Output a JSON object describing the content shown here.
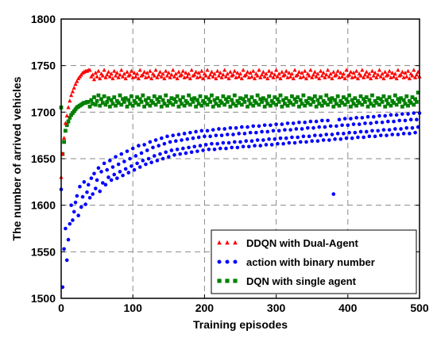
{
  "chart_data": {
    "type": "scatter",
    "xlabel": "Training episodes",
    "ylabel": "The number of arrived vehicles",
    "xlim": [
      0,
      500
    ],
    "ylim": [
      1500,
      1800
    ],
    "xticks": [
      0,
      100,
      200,
      300,
      400,
      500
    ],
    "yticks": [
      1500,
      1550,
      1600,
      1650,
      1700,
      1750,
      1800
    ],
    "grid": true,
    "legend_position": "bottom-right",
    "series": [
      {
        "name": "DDQN with Dual-Agent",
        "marker": "triangle",
        "color": "#ff0000",
        "sample_step": 2,
        "values": [
          1630,
          1655,
          1672,
          1688,
          1696,
          1705,
          1712,
          1718,
          1722,
          1726,
          1730,
          1733,
          1736,
          1738,
          1740,
          1742,
          1743,
          1744,
          1744,
          1745,
          1745,
          1738,
          1740,
          1735,
          1742,
          1738,
          1744,
          1736,
          1741,
          1739,
          1745,
          1737,
          1740,
          1743,
          1738,
          1741,
          1736,
          1744,
          1739,
          1742,
          1737,
          1740,
          1745,
          1738,
          1741,
          1736,
          1743,
          1739,
          1740,
          1744,
          1737,
          1742,
          1738,
          1741,
          1736,
          1745,
          1739,
          1740,
          1743,
          1737,
          1742,
          1738,
          1744,
          1736,
          1741,
          1739,
          1745,
          1737,
          1740,
          1743,
          1738,
          1741,
          1736,
          1744,
          1739,
          1742,
          1737,
          1740,
          1745,
          1738,
          1741,
          1736,
          1743,
          1739,
          1740,
          1744,
          1737,
          1742,
          1738,
          1741,
          1736,
          1745,
          1739,
          1740,
          1743,
          1737,
          1742,
          1738,
          1744,
          1736,
          1741,
          1739,
          1745,
          1737,
          1740,
          1743,
          1738,
          1741,
          1736,
          1744,
          1739,
          1742,
          1737,
          1740,
          1745,
          1738,
          1741,
          1736,
          1743,
          1739,
          1740,
          1744,
          1737,
          1742,
          1738,
          1741,
          1736,
          1745,
          1739,
          1740,
          1743,
          1737,
          1742,
          1738,
          1744,
          1736,
          1741,
          1739,
          1745,
          1737,
          1740,
          1743,
          1738,
          1741,
          1736,
          1744,
          1739,
          1742,
          1737,
          1740,
          1745,
          1738,
          1741,
          1736,
          1743,
          1739,
          1740,
          1744,
          1737,
          1742,
          1738,
          1741,
          1736,
          1745,
          1739,
          1740,
          1743,
          1737,
          1742,
          1738,
          1744,
          1736,
          1741,
          1739,
          1745,
          1737,
          1740,
          1743,
          1738,
          1741,
          1736,
          1744,
          1739,
          1742,
          1737,
          1740,
          1745,
          1738,
          1741,
          1736,
          1743,
          1739,
          1740,
          1744,
          1737,
          1742,
          1738,
          1741,
          1736,
          1745,
          1739,
          1740,
          1743,
          1737,
          1742,
          1738,
          1744,
          1736,
          1741,
          1739,
          1745,
          1737,
          1740,
          1743,
          1738,
          1741,
          1736,
          1744,
          1739,
          1742,
          1737,
          1740,
          1745,
          1738,
          1741,
          1736,
          1743,
          1739,
          1740,
          1744,
          1737,
          1742,
          1738,
          1741,
          1736,
          1745,
          1739,
          1740,
          1743,
          1737,
          1742,
          1738,
          1744,
          1736,
          1741,
          1739,
          1745,
          1737,
          1740,
          1743,
          1738
        ]
      },
      {
        "name": "action with binary number",
        "marker": "circle",
        "color": "#0000ff",
        "sample_step": 2,
        "values": [
          1617,
          1512,
          1553,
          1575,
          1541,
          1563,
          1580,
          1600,
          1584,
          1593,
          1603,
          1610,
          1589,
          1620,
          1598,
          1609,
          1625,
          1601,
          1614,
          1622,
          1608,
          1629,
          1612,
          1634,
          1618,
          1627,
          1640,
          1615,
          1636,
          1624,
          1645,
          1622,
          1638,
          1630,
          1648,
          1627,
          1641,
          1633,
          1652,
          1629,
          1644,
          1636,
          1655,
          1632,
          1647,
          1639,
          1658,
          1635,
          1650,
          1642,
          1661,
          1638,
          1653,
          1645,
          1664,
          1641,
          1656,
          1648,
          1665,
          1644,
          1659,
          1650,
          1668,
          1646,
          1662,
          1653,
          1670,
          1648,
          1664,
          1655,
          1672,
          1650,
          1666,
          1657,
          1674,
          1652,
          1668,
          1659,
          1675,
          1654,
          1669,
          1660,
          1676,
          1655,
          1670,
          1661,
          1677,
          1656,
          1671,
          1662,
          1678,
          1657,
          1672,
          1663,
          1679,
          1658,
          1673,
          1664,
          1680,
          1659,
          1674,
          1665,
          1680,
          1660,
          1674,
          1666,
          1681,
          1660,
          1675,
          1666,
          1682,
          1661,
          1675,
          1667,
          1682,
          1661,
          1676,
          1667,
          1683,
          1662,
          1676,
          1668,
          1683,
          1662,
          1677,
          1668,
          1684,
          1663,
          1677,
          1669,
          1684,
          1663,
          1678,
          1669,
          1685,
          1664,
          1678,
          1670,
          1685,
          1664,
          1679,
          1670,
          1686,
          1665,
          1679,
          1671,
          1686,
          1665,
          1680,
          1671,
          1687,
          1666,
          1680,
          1672,
          1687,
          1666,
          1681,
          1672,
          1688,
          1667,
          1681,
          1673,
          1688,
          1667,
          1682,
          1673,
          1689,
          1668,
          1682,
          1674,
          1689,
          1668,
          1683,
          1674,
          1690,
          1669,
          1683,
          1675,
          1690,
          1669,
          1684,
          1675,
          1691,
          1670,
          1684,
          1676,
          1691,
          1670,
          1685,
          1676,
          1612,
          1671,
          1685,
          1677,
          1692,
          1671,
          1686,
          1677,
          1693,
          1672,
          1686,
          1678,
          1693,
          1672,
          1687,
          1678,
          1694,
          1673,
          1687,
          1679,
          1694,
          1673,
          1688,
          1679,
          1695,
          1674,
          1688,
          1680,
          1695,
          1674,
          1689,
          1680,
          1696,
          1675,
          1689,
          1681,
          1696,
          1675,
          1690,
          1681,
          1697,
          1676,
          1690,
          1682,
          1697,
          1676,
          1691,
          1682,
          1698,
          1677,
          1691,
          1683,
          1698,
          1677,
          1692,
          1683,
          1699,
          1678,
          1692,
          1684,
          1699
        ]
      },
      {
        "name": "DQN with single agent",
        "marker": "square",
        "color": "#008000",
        "sample_step": 2,
        "values": [
          1705,
          1655,
          1668,
          1680,
          1686,
          1690,
          1694,
          1697,
          1699,
          1701,
          1703,
          1705,
          1706,
          1707,
          1708,
          1709,
          1710,
          1710,
          1711,
          1711,
          1706,
          1713,
          1709,
          1716,
          1708,
          1712,
          1718,
          1707,
          1714,
          1710,
          1717,
          1708,
          1711,
          1715,
          1706,
          1713,
          1709,
          1716,
          1707,
          1712,
          1710,
          1718,
          1708,
          1714,
          1711,
          1715,
          1706,
          1713,
          1709,
          1717,
          1707,
          1712,
          1710,
          1716,
          1708,
          1714,
          1711,
          1718,
          1706,
          1713,
          1709,
          1715,
          1707,
          1712,
          1710,
          1717,
          1708,
          1714,
          1711,
          1716,
          1706,
          1713,
          1709,
          1718,
          1707,
          1712,
          1710,
          1715,
          1708,
          1714,
          1711,
          1717,
          1706,
          1713,
          1709,
          1716,
          1707,
          1712,
          1710,
          1718,
          1708,
          1714,
          1711,
          1715,
          1706,
          1713,
          1709,
          1717,
          1707,
          1712,
          1710,
          1716,
          1708,
          1714,
          1711,
          1718,
          1706,
          1713,
          1709,
          1715,
          1707,
          1712,
          1710,
          1717,
          1708,
          1714,
          1711,
          1716,
          1706,
          1713,
          1709,
          1718,
          1707,
          1712,
          1710,
          1715,
          1708,
          1714,
          1711,
          1717,
          1706,
          1713,
          1709,
          1716,
          1707,
          1712,
          1710,
          1718,
          1708,
          1714,
          1711,
          1715,
          1706,
          1713,
          1709,
          1717,
          1707,
          1712,
          1710,
          1716,
          1708,
          1714,
          1711,
          1718,
          1706,
          1713,
          1709,
          1715,
          1707,
          1712,
          1710,
          1717,
          1708,
          1714,
          1711,
          1716,
          1706,
          1713,
          1709,
          1718,
          1707,
          1712,
          1710,
          1715,
          1708,
          1714,
          1711,
          1717,
          1706,
          1713,
          1709,
          1716,
          1707,
          1712,
          1710,
          1718,
          1708,
          1714,
          1711,
          1715,
          1706,
          1713,
          1709,
          1717,
          1707,
          1712,
          1710,
          1716,
          1708,
          1714,
          1711,
          1718,
          1706,
          1713,
          1709,
          1715,
          1707,
          1712,
          1710,
          1717,
          1708,
          1714,
          1711,
          1716,
          1706,
          1713,
          1709,
          1718,
          1707,
          1712,
          1710,
          1715,
          1708,
          1714,
          1711,
          1717,
          1706,
          1713,
          1709,
          1716,
          1707,
          1712,
          1710,
          1718,
          1708,
          1714,
          1711,
          1715,
          1706,
          1713,
          1709,
          1717,
          1707,
          1712,
          1710,
          1716,
          1708,
          1714,
          1711,
          1721
        ]
      }
    ]
  }
}
